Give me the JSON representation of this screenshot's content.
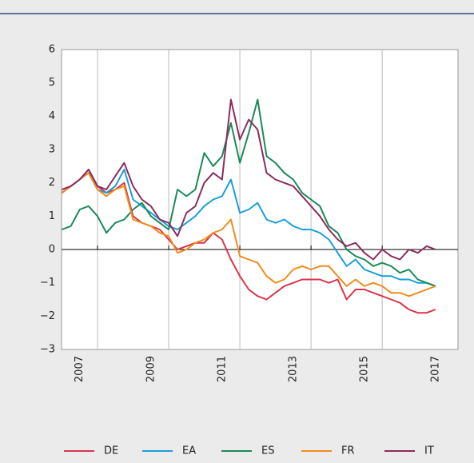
{
  "chart_data": {
    "type": "line",
    "x": [
      2007.0,
      2007.25,
      2007.5,
      2007.75,
      2008.0,
      2008.25,
      2008.5,
      2008.75,
      2009.0,
      2009.25,
      2009.5,
      2009.75,
      2010.0,
      2010.25,
      2010.5,
      2010.75,
      2011.0,
      2011.25,
      2011.5,
      2011.75,
      2012.0,
      2012.25,
      2012.5,
      2012.75,
      2013.0,
      2013.25,
      2013.5,
      2013.75,
      2014.0,
      2014.25,
      2014.5,
      2014.75,
      2015.0,
      2015.25,
      2015.5,
      2015.75,
      2016.0,
      2016.25,
      2016.5,
      2016.75,
      2017.0,
      2017.25,
      2017.5
    ],
    "series": [
      {
        "name": "DE",
        "color": "#d9344a",
        "values": [
          1.7,
          1.9,
          2.1,
          2.4,
          1.9,
          1.7,
          1.8,
          2.0,
          1.0,
          0.8,
          0.7,
          0.6,
          0.3,
          0.0,
          0.1,
          0.2,
          0.2,
          0.5,
          0.3,
          -0.3,
          -0.8,
          -1.2,
          -1.4,
          -1.5,
          -1.3,
          -1.1,
          -1.0,
          -0.9,
          -0.9,
          -0.9,
          -1.0,
          -0.9,
          -1.5,
          -1.2,
          -1.2,
          -1.3,
          -1.4,
          -1.5,
          -1.6,
          -1.8,
          -1.9,
          -1.9,
          -1.8
        ]
      },
      {
        "name": "EA",
        "color": "#1a9fdb",
        "values": [
          1.7,
          1.9,
          2.1,
          2.3,
          1.8,
          1.7,
          1.9,
          2.4,
          1.5,
          1.3,
          1.1,
          0.9,
          0.7,
          0.6,
          0.8,
          1.0,
          1.3,
          1.5,
          1.6,
          2.1,
          1.1,
          1.2,
          1.4,
          0.9,
          0.8,
          0.9,
          0.7,
          0.6,
          0.6,
          0.5,
          0.3,
          -0.1,
          -0.5,
          -0.3,
          -0.6,
          -0.7,
          -0.8,
          -0.8,
          -0.9,
          -0.9,
          -1.0,
          -1.0,
          -1.1
        ]
      },
      {
        "name": "ES",
        "color": "#1a8a5a",
        "values": [
          0.6,
          0.7,
          1.2,
          1.3,
          1.0,
          0.5,
          0.8,
          0.9,
          1.2,
          1.4,
          1.0,
          0.8,
          0.6,
          1.8,
          1.6,
          1.8,
          2.9,
          2.5,
          2.8,
          3.8,
          2.6,
          3.5,
          4.5,
          2.8,
          2.6,
          2.3,
          2.1,
          1.7,
          1.5,
          1.3,
          0.7,
          0.5,
          0.0,
          -0.2,
          -0.3,
          -0.5,
          -0.4,
          -0.5,
          -0.7,
          -0.6,
          -0.9,
          -1.0,
          -1.1
        ]
      },
      {
        "name": "FR",
        "color": "#f28c1e",
        "values": [
          1.7,
          1.9,
          2.1,
          2.3,
          1.8,
          1.6,
          1.8,
          1.9,
          0.9,
          0.8,
          0.7,
          0.5,
          0.4,
          -0.1,
          0.0,
          0.2,
          0.3,
          0.5,
          0.6,
          0.9,
          -0.2,
          -0.3,
          -0.4,
          -0.8,
          -1.0,
          -0.9,
          -0.6,
          -0.5,
          -0.6,
          -0.5,
          -0.5,
          -0.8,
          -1.1,
          -0.9,
          -1.1,
          -1.0,
          -1.1,
          -1.3,
          -1.3,
          -1.4,
          -1.3,
          -1.2,
          -1.1
        ]
      },
      {
        "name": "IT",
        "color": "#8b2c5e",
        "values": [
          1.8,
          1.9,
          2.1,
          2.4,
          1.9,
          1.8,
          2.2,
          2.6,
          1.9,
          1.5,
          1.3,
          0.9,
          0.8,
          0.4,
          1.1,
          1.3,
          2.0,
          2.3,
          2.1,
          4.5,
          3.3,
          3.9,
          3.6,
          2.3,
          2.1,
          2.0,
          1.9,
          1.6,
          1.3,
          1.0,
          0.6,
          0.3,
          0.1,
          0.2,
          -0.1,
          -0.3,
          0.0,
          -0.2,
          -0.3,
          0.0,
          -0.1,
          0.1,
          0.0
        ]
      }
    ],
    "xlim": [
      2006.99,
      2018.13
    ],
    "xticks": [
      {
        "value": 2007.5,
        "label": "2007"
      },
      {
        "value": 2009.5,
        "label": "2009"
      },
      {
        "value": 2011.5,
        "label": "2011"
      },
      {
        "value": 2013.5,
        "label": "2013"
      },
      {
        "value": 2015.5,
        "label": "2015"
      },
      {
        "value": 2017.5,
        "label": "2017"
      }
    ],
    "xgrid": [
      2008,
      2010,
      2012,
      2014,
      2016
    ],
    "ylim": [
      -3,
      6
    ],
    "yticks": [
      {
        "value": -3,
        "label": "−3"
      },
      {
        "value": -2,
        "label": "−2"
      },
      {
        "value": -1,
        "label": "−1"
      },
      0,
      1,
      2,
      3,
      4,
      5,
      6
    ]
  }
}
